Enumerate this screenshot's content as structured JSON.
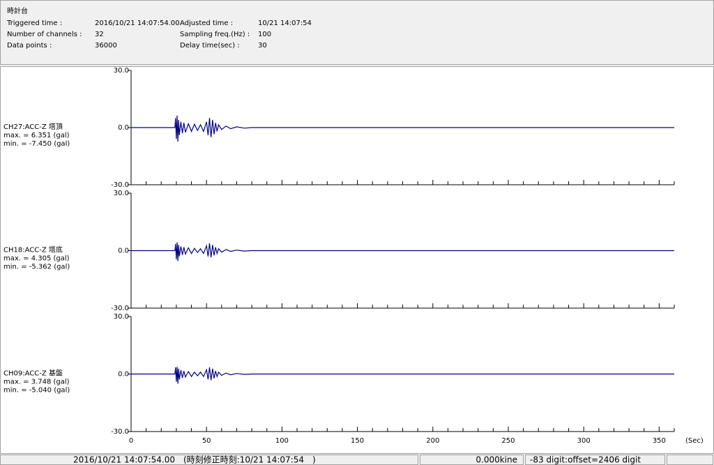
{
  "header": {
    "title": "時計台",
    "fields": [
      {
        "label": "Triggered time :",
        "value": "2016/10/21 14:07:54.00"
      },
      {
        "label": "Number of channels :",
        "value": "32"
      },
      {
        "label": "Data points :",
        "value": "36000"
      },
      {
        "label": "Adjusted time :",
        "value": "10/21 14:07:54"
      },
      {
        "label": "Sampling freq.(Hz) :",
        "value": "100"
      },
      {
        "label": "Delay time(sec) :",
        "value": "30"
      }
    ]
  },
  "chart_data": [
    {
      "type": "line",
      "title": "CH27:ACC-Z 塔頂",
      "annotations": [
        "max. = 6.351 (gal)",
        "min. = -7.450 (gal)"
      ],
      "color": "#000080",
      "x": [
        0,
        29,
        29.5,
        30,
        30.5,
        31,
        31.5,
        32,
        33,
        34,
        35,
        36,
        38,
        40,
        42,
        44,
        46,
        48,
        50,
        51,
        52,
        53,
        54,
        55,
        56,
        57,
        58,
        60,
        63,
        66,
        70,
        75,
        80,
        360
      ],
      "values": [
        0,
        0,
        5,
        -6,
        6.3,
        -7.4,
        4,
        -4,
        3,
        -3,
        2.5,
        -2.5,
        2,
        -2,
        1.8,
        -1.5,
        1.5,
        -2,
        3,
        -4,
        5,
        -5,
        4,
        -3.5,
        2.5,
        -2,
        1.5,
        -1,
        0.8,
        -0.6,
        0.4,
        -0.3,
        0,
        0
      ],
      "ylim": [
        -30,
        30
      ],
      "yticks": [
        {
          "value": -30,
          "label": "-30.0"
        },
        {
          "value": 0,
          "label": "0.0"
        },
        {
          "value": 30,
          "label": "30.0"
        }
      ]
    },
    {
      "type": "line",
      "title": "CH18:ACC-Z 塔底",
      "annotations": [
        "max. = 4.305 (gal)",
        "min. = -5.362 (gal)"
      ],
      "color": "#000080",
      "x": [
        0,
        29,
        29.5,
        30,
        30.5,
        31,
        31.5,
        32,
        33,
        34,
        35,
        36,
        38,
        40,
        42,
        44,
        46,
        48,
        50,
        51,
        52,
        53,
        54,
        55,
        56,
        57,
        58,
        60,
        63,
        66,
        70,
        75,
        80,
        360
      ],
      "values": [
        0,
        0,
        3.5,
        -4.5,
        4.3,
        -5.4,
        3,
        -3,
        2.2,
        -2.2,
        1.8,
        -1.8,
        1.5,
        -1.5,
        1.2,
        -1,
        1,
        -1.5,
        2.5,
        -3,
        3.8,
        -3.5,
        3,
        -2.5,
        1.8,
        -1.5,
        1,
        -0.8,
        0.6,
        -0.4,
        0.3,
        -0.2,
        0,
        0
      ],
      "ylim": [
        -30,
        30
      ],
      "yticks": [
        {
          "value": -30,
          "label": "-30.0"
        },
        {
          "value": 0,
          "label": "0.0"
        },
        {
          "value": 30,
          "label": "30.0"
        }
      ]
    },
    {
      "type": "line",
      "title": "CH09:ACC-Z 基盤",
      "annotations": [
        "max. = 3.748 (gal)",
        "min. = -5.040 (gal)"
      ],
      "color": "#000080",
      "x": [
        0,
        29,
        29.5,
        30,
        30.5,
        31,
        31.5,
        32,
        33,
        34,
        35,
        36,
        38,
        40,
        42,
        44,
        46,
        48,
        50,
        51,
        52,
        53,
        54,
        55,
        56,
        57,
        58,
        60,
        63,
        66,
        70,
        75,
        80,
        360
      ],
      "values": [
        0,
        0,
        3.5,
        -4,
        3.7,
        -5,
        2.8,
        -2.8,
        2,
        -2,
        1.6,
        -1.6,
        1.3,
        -1.3,
        1,
        -0.9,
        1,
        -1.3,
        2.2,
        -2.8,
        3.5,
        -3.2,
        2.8,
        -2.3,
        1.6,
        -1.3,
        0.9,
        -0.7,
        0.5,
        -0.4,
        0.3,
        -0.2,
        0,
        0
      ],
      "ylim": [
        -30,
        30
      ],
      "yticks": [
        {
          "value": -30,
          "label": "-30.0"
        },
        {
          "value": 0,
          "label": "0.0"
        },
        {
          "value": 30,
          "label": "30.0"
        }
      ],
      "xlim": [
        0,
        360
      ],
      "xticks": [
        0,
        50,
        100,
        150,
        200,
        250,
        300,
        350
      ],
      "xminorticks": [
        10,
        20,
        30,
        40,
        60,
        70,
        80,
        90,
        110,
        120,
        130,
        140,
        160,
        170,
        180,
        190,
        210,
        220,
        230,
        240,
        260,
        270,
        280,
        290,
        310,
        320,
        330,
        340,
        360
      ],
      "xlabel": "(Sec)"
    }
  ],
  "status_bar": [
    "2016/10/21 14:07:54.00　(時刻修正時刻:10/21 14:07:54　)",
    "0.000kine",
    "-83 digit:offset=2406 digit"
  ]
}
